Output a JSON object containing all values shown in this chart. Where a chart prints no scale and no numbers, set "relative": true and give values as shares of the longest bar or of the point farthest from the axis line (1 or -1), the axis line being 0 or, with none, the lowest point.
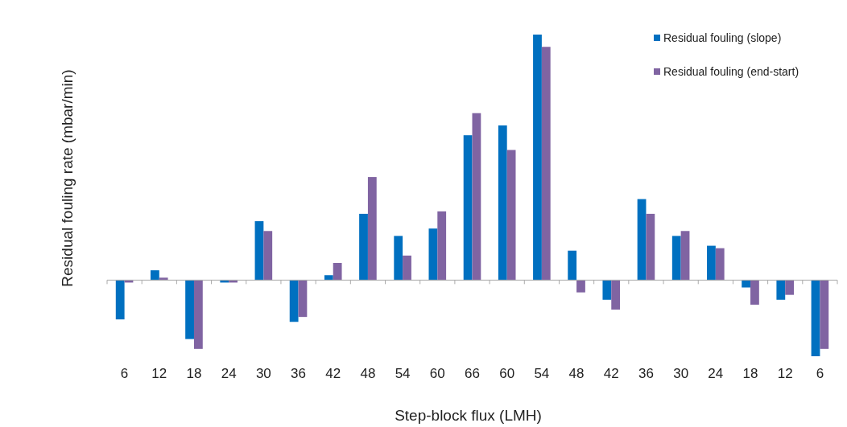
{
  "chart_data": {
    "type": "bar",
    "relative": true,
    "xlabel": "Step-block flux (LMH)",
    "ylabel": "Residual fouling rate (mbar/min)",
    "legend": "top right",
    "categories": [
      "6",
      "12",
      "18",
      "24",
      "30",
      "36",
      "42",
      "48",
      "54",
      "60",
      "66",
      "60",
      "54",
      "48",
      "42",
      "36",
      "30",
      "24",
      "18",
      "12",
      "6"
    ],
    "series": [
      {
        "name": "Residual fouling (slope)",
        "color": "#0070c0",
        "values": [
          -0.16,
          0.04,
          -0.24,
          -0.01,
          0.24,
          -0.17,
          0.02,
          0.27,
          0.18,
          0.21,
          0.59,
          0.63,
          1,
          0.12,
          -0.08,
          0.33,
          0.18,
          0.14,
          -0.03,
          -0.08,
          -0.31
        ]
      },
      {
        "name": "Residual fouling (end-start)",
        "color": "#8064a2",
        "values": [
          -0.01,
          0.01,
          -0.28,
          -0.01,
          0.2,
          -0.15,
          0.07,
          0.42,
          0.1,
          0.28,
          0.68,
          0.53,
          0.95,
          -0.05,
          -0.12,
          0.27,
          0.2,
          0.13,
          -0.1,
          -0.06,
          -0.28
        ]
      }
    ]
  }
}
